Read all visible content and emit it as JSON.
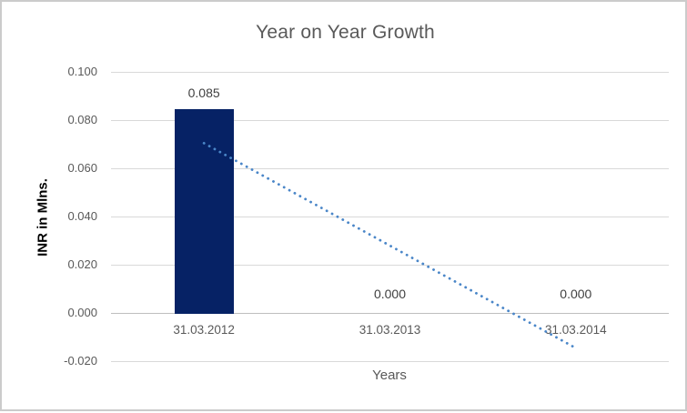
{
  "window": {
    "background": "#ffffff",
    "border_color": "#cbcbcb"
  },
  "chart_data": {
    "type": "bar",
    "title": "Year on Year Growth",
    "xlabel": "Years",
    "ylabel": "INR in Mlns.",
    "categories": [
      "31.03.2012",
      "31.03.2013",
      "31.03.2014"
    ],
    "values": [
      0.085,
      0.0,
      0.0
    ],
    "data_labels": [
      "0.085",
      "0.000",
      "0.000"
    ],
    "ytick_labels": [
      "0.100",
      "0.080",
      "0.060",
      "0.040",
      "0.020",
      "0.000",
      "-0.020"
    ],
    "ytick_values": [
      0.1,
      0.08,
      0.06,
      0.04,
      0.02,
      0.0,
      -0.02
    ],
    "ylim": [
      -0.02,
      0.1
    ],
    "grid": true,
    "legend": false,
    "bar_color": "#062265",
    "trendline": {
      "type": "linear",
      "style": "dotted",
      "color": "#4a86c8",
      "start_value": 0.0708,
      "end_value": -0.0142
    },
    "colors": {
      "title_text": "#595959",
      "tick_text": "#595959",
      "category_text": "#595959",
      "data_label_text": "#404040",
      "gridline": "#d9d9d9",
      "axis_line": "#bfbfbf",
      "y_title_text": "#000000",
      "x_title_text": "#595959"
    }
  }
}
